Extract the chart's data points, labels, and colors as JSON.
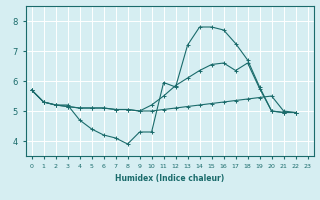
{
  "xlabel": "Humidex (Indice chaleur)",
  "background_color": "#d6eef2",
  "grid_color": "#ffffff",
  "line_color": "#1a6b6b",
  "xlim": [
    -0.5,
    23.5
  ],
  "ylim": [
    3.5,
    8.5
  ],
  "xticks": [
    0,
    1,
    2,
    3,
    4,
    5,
    6,
    7,
    8,
    9,
    10,
    11,
    12,
    13,
    14,
    15,
    16,
    17,
    18,
    19,
    20,
    21,
    22,
    23
  ],
  "yticks": [
    4,
    5,
    6,
    7,
    8
  ],
  "series": [
    {
      "x": [
        0,
        1,
        2,
        3,
        4,
        5,
        6,
        7,
        8,
        9,
        10,
        11,
        12,
        13,
        14,
        15,
        16,
        17,
        18,
        19,
        20,
        21,
        22
      ],
      "y": [
        5.7,
        5.3,
        5.2,
        5.2,
        4.7,
        4.4,
        4.2,
        4.1,
        3.9,
        4.3,
        4.3,
        5.95,
        5.8,
        7.2,
        7.8,
        7.8,
        7.7,
        7.25,
        6.7,
        5.8,
        5.0,
        4.95,
        4.95
      ]
    },
    {
      "x": [
        0,
        1,
        2,
        3,
        4,
        5,
        6,
        7,
        8,
        9,
        10,
        11,
        12,
        13,
        14,
        15,
        16,
        17,
        18,
        19,
        20,
        21,
        22
      ],
      "y": [
        5.7,
        5.3,
        5.2,
        5.15,
        5.1,
        5.1,
        5.1,
        5.05,
        5.05,
        5.0,
        5.0,
        5.05,
        5.1,
        5.15,
        5.2,
        5.25,
        5.3,
        5.35,
        5.4,
        5.45,
        5.5,
        5.0,
        4.95
      ]
    },
    {
      "x": [
        0,
        1,
        2,
        3,
        4,
        5,
        6,
        7,
        8,
        9,
        10,
        11,
        12,
        13,
        14,
        15,
        16,
        17,
        18,
        19,
        20,
        21,
        22
      ],
      "y": [
        5.7,
        5.3,
        5.2,
        5.15,
        5.1,
        5.1,
        5.1,
        5.05,
        5.05,
        5.0,
        5.2,
        5.5,
        5.85,
        6.1,
        6.35,
        6.55,
        6.6,
        6.35,
        6.6,
        5.75,
        5.0,
        4.95,
        4.95
      ]
    }
  ]
}
